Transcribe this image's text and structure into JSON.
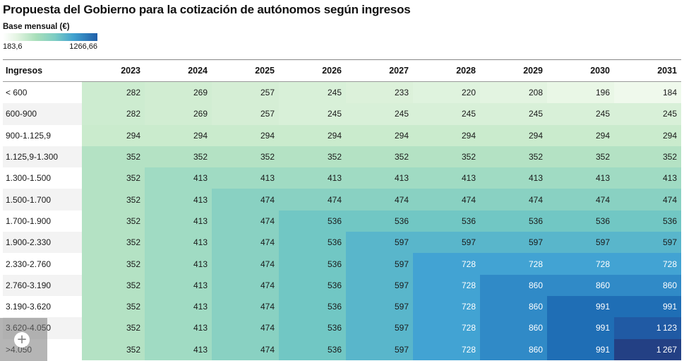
{
  "chart_data": {
    "type": "heatmap",
    "title": "Propuesta del Gobierno para la cotización de autónomos según ingresos",
    "legend": {
      "label": "Base mensual (€)",
      "min": 183.6,
      "max": 1266.66,
      "min_label": "183,6",
      "max_label": "1266,66",
      "colors": [
        "#ffffff",
        "#e3f4e2",
        "#a9dfba",
        "#7dcdc3",
        "#40a1cf",
        "#1f5ea8"
      ]
    },
    "row_header": "Ingresos",
    "columns": [
      "2023",
      "2024",
      "2025",
      "2026",
      "2027",
      "2028",
      "2029",
      "2030",
      "2031"
    ],
    "rows": [
      {
        "label": "< 600",
        "values": [
          282,
          269,
          257,
          245,
          233,
          220,
          208,
          196,
          184
        ]
      },
      {
        "label": "600-900",
        "values": [
          282,
          269,
          257,
          245,
          245,
          245,
          245,
          245,
          245
        ]
      },
      {
        "label": "900-1.125,9",
        "values": [
          294,
          294,
          294,
          294,
          294,
          294,
          294,
          294,
          294
        ]
      },
      {
        "label": "1.125,9-1.300",
        "values": [
          352,
          352,
          352,
          352,
          352,
          352,
          352,
          352,
          352
        ]
      },
      {
        "label": "1.300-1.500",
        "values": [
          352,
          413,
          413,
          413,
          413,
          413,
          413,
          413,
          413
        ]
      },
      {
        "label": "1.500-1.700",
        "values": [
          352,
          413,
          474,
          474,
          474,
          474,
          474,
          474,
          474
        ]
      },
      {
        "label": "1.700-1.900",
        "values": [
          352,
          413,
          474,
          536,
          536,
          536,
          536,
          536,
          536
        ]
      },
      {
        "label": "1.900-2.330",
        "values": [
          352,
          413,
          474,
          536,
          597,
          597,
          597,
          597,
          597
        ]
      },
      {
        "label": "2.330-2.760",
        "values": [
          352,
          413,
          474,
          536,
          597,
          728,
          728,
          728,
          728
        ]
      },
      {
        "label": "2.760-3.190",
        "values": [
          352,
          413,
          474,
          536,
          597,
          728,
          860,
          860,
          860
        ]
      },
      {
        "label": "3.190-3.620",
        "values": [
          352,
          413,
          474,
          536,
          597,
          728,
          860,
          991,
          991
        ]
      },
      {
        "label": "3.620-4.050",
        "values": [
          352,
          413,
          474,
          536,
          597,
          728,
          860,
          991,
          1123
        ]
      },
      {
        "label": ">4.050",
        "values": [
          352,
          413,
          474,
          536,
          597,
          728,
          860,
          991,
          1267
        ]
      }
    ]
  },
  "ui": {
    "zoom_button_label": "+"
  }
}
